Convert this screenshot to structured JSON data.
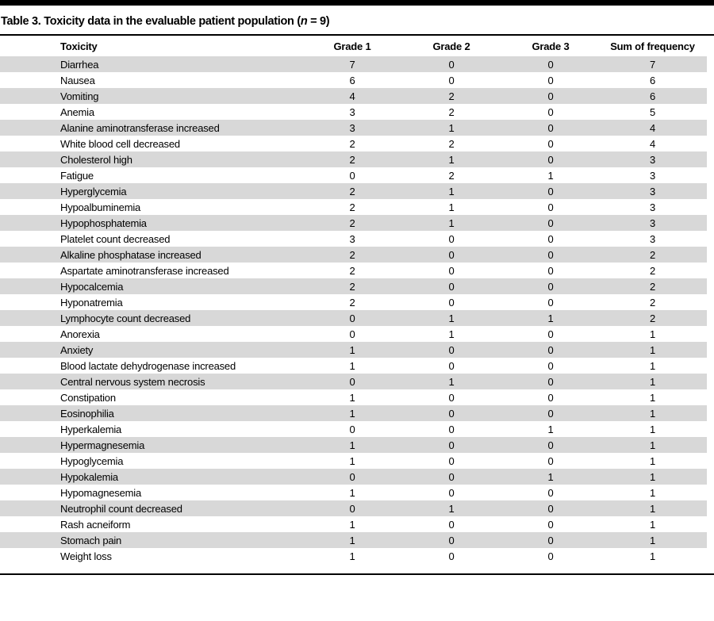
{
  "title": {
    "prefix": "Table 3. Toxicity data in the evaluable patient population (",
    "n_symbol": "n",
    "suffix": " = 9)"
  },
  "table": {
    "columns": [
      "Toxicity",
      "Grade 1",
      "Grade 2",
      "Grade 3",
      "Sum of frequency"
    ],
    "rows": [
      [
        "Diarrhea",
        "7",
        "0",
        "0",
        "7"
      ],
      [
        "Nausea",
        "6",
        "0",
        "0",
        "6"
      ],
      [
        "Vomiting",
        "4",
        "2",
        "0",
        "6"
      ],
      [
        "Anemia",
        "3",
        "2",
        "0",
        "5"
      ],
      [
        "Alanine aminotransferase increased",
        "3",
        "1",
        "0",
        "4"
      ],
      [
        "White blood cell decreased",
        "2",
        "2",
        "0",
        "4"
      ],
      [
        "Cholesterol high",
        "2",
        "1",
        "0",
        "3"
      ],
      [
        "Fatigue",
        "0",
        "2",
        "1",
        "3"
      ],
      [
        "Hyperglycemia",
        "2",
        "1",
        "0",
        "3"
      ],
      [
        "Hypoalbuminemia",
        "2",
        "1",
        "0",
        "3"
      ],
      [
        "Hypophosphatemia",
        "2",
        "1",
        "0",
        "3"
      ],
      [
        "Platelet count decreased",
        "3",
        "0",
        "0",
        "3"
      ],
      [
        "Alkaline phosphatase increased",
        "2",
        "0",
        "0",
        "2"
      ],
      [
        "Aspartate aminotransferase increased",
        "2",
        "0",
        "0",
        "2"
      ],
      [
        "Hypocalcemia",
        "2",
        "0",
        "0",
        "2"
      ],
      [
        "Hyponatremia",
        "2",
        "0",
        "0",
        "2"
      ],
      [
        "Lymphocyte count decreased",
        "0",
        "1",
        "1",
        "2"
      ],
      [
        "Anorexia",
        "0",
        "1",
        "0",
        "1"
      ],
      [
        "Anxiety",
        "1",
        "0",
        "0",
        "1"
      ],
      [
        "Blood lactate dehydrogenase increased",
        "1",
        "0",
        "0",
        "1"
      ],
      [
        "Central nervous system necrosis",
        "0",
        "1",
        "0",
        "1"
      ],
      [
        "Constipation",
        "1",
        "0",
        "0",
        "1"
      ],
      [
        "Eosinophilia",
        "1",
        "0",
        "0",
        "1"
      ],
      [
        "Hyperkalemia",
        "0",
        "0",
        "1",
        "1"
      ],
      [
        "Hypermagnesemia",
        "1",
        "0",
        "0",
        "1"
      ],
      [
        "Hypoglycemia",
        "1",
        "0",
        "0",
        "1"
      ],
      [
        "Hypokalemia",
        "0",
        "0",
        "1",
        "1"
      ],
      [
        "Hypomagnesemia",
        "1",
        "0",
        "0",
        "1"
      ],
      [
        "Neutrophil count decreased",
        "0",
        "1",
        "0",
        "1"
      ],
      [
        "Rash acneiform",
        "1",
        "0",
        "0",
        "1"
      ],
      [
        "Stomach pain",
        "1",
        "0",
        "0",
        "1"
      ],
      [
        "Weight loss",
        "1",
        "0",
        "0",
        "1"
      ]
    ]
  },
  "colors": {
    "stripe_gray": "#d8d8d8",
    "rule_black": "#000000"
  }
}
